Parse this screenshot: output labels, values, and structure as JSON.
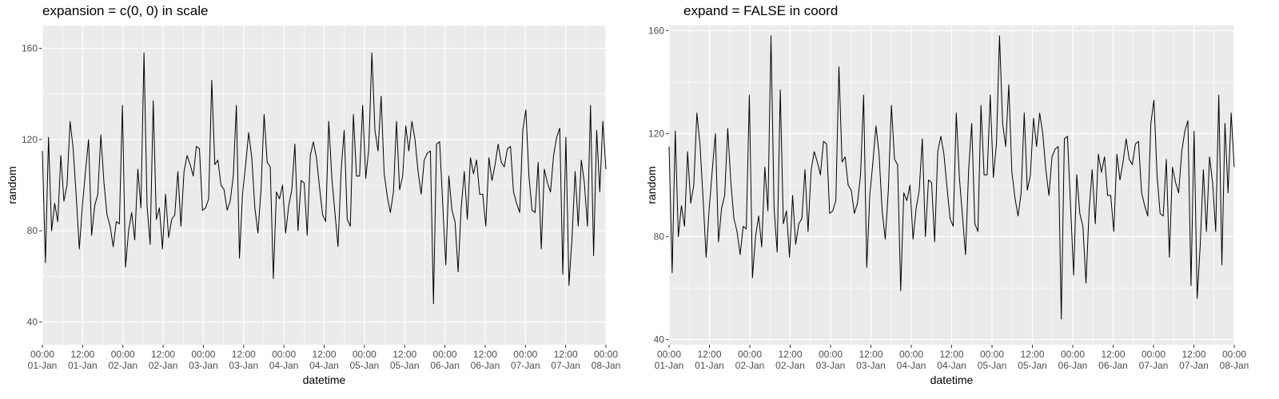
{
  "chart_data": [
    {
      "type": "line",
      "title": "expansion = c(0, 0) in scale",
      "xlabel": "datetime",
      "ylabel": "random",
      "ylim": [
        30,
        170
      ],
      "yticks": [
        40,
        80,
        120,
        160
      ],
      "xticks": [
        {
          "time": "00:00",
          "date": "01-Jan"
        },
        {
          "time": "12:00",
          "date": "01-Jan"
        },
        {
          "time": "00:00",
          "date": "02-Jan"
        },
        {
          "time": "12:00",
          "date": "02-Jan"
        },
        {
          "time": "00:00",
          "date": "03-Jan"
        },
        {
          "time": "12:00",
          "date": "03-Jan"
        },
        {
          "time": "00:00",
          "date": "04-Jan"
        },
        {
          "time": "12:00",
          "date": "04-Jan"
        },
        {
          "time": "00:00",
          "date": "05-Jan"
        },
        {
          "time": "12:00",
          "date": "05-Jan"
        },
        {
          "time": "00:00",
          "date": "06-Jan"
        },
        {
          "time": "12:00",
          "date": "06-Jan"
        },
        {
          "time": "00:00",
          "date": "07-Jan"
        },
        {
          "time": "12:00",
          "date": "07-Jan"
        },
        {
          "time": "00:00",
          "date": "08-Jan"
        }
      ],
      "series_ref": "random",
      "grid": true,
      "background": "#EBEBEB",
      "grid_color": "#FFFFFF",
      "line_color": "#000000"
    },
    {
      "type": "line",
      "title": "expand = FALSE in coord",
      "xlabel": "datetime",
      "ylabel": "random",
      "ylim": [
        38,
        162
      ],
      "yticks": [
        40,
        80,
        120,
        160
      ],
      "xticks": [
        {
          "time": "00:00",
          "date": "01-Jan"
        },
        {
          "time": "12:00",
          "date": "01-Jan"
        },
        {
          "time": "00:00",
          "date": "02-Jan"
        },
        {
          "time": "12:00",
          "date": "02-Jan"
        },
        {
          "time": "00:00",
          "date": "03-Jan"
        },
        {
          "time": "12:00",
          "date": "03-Jan"
        },
        {
          "time": "00:00",
          "date": "04-Jan"
        },
        {
          "time": "12:00",
          "date": "04-Jan"
        },
        {
          "time": "00:00",
          "date": "05-Jan"
        },
        {
          "time": "12:00",
          "date": "05-Jan"
        },
        {
          "time": "00:00",
          "date": "06-Jan"
        },
        {
          "time": "12:00",
          "date": "06-Jan"
        },
        {
          "time": "00:00",
          "date": "07-Jan"
        },
        {
          "time": "12:00",
          "date": "07-Jan"
        },
        {
          "time": "00:00",
          "date": "08-Jan"
        }
      ],
      "series_ref": "random",
      "grid": true,
      "background": "#EBEBEB",
      "grid_color": "#FFFFFF",
      "line_color": "#000000"
    }
  ],
  "series": {
    "random": {
      "x_start": "01-Jan 00:00",
      "x_end": "08-Jan 00:00",
      "values": [
        115,
        66,
        121,
        80,
        92,
        84,
        113,
        93,
        100,
        128,
        116,
        95,
        72,
        91,
        106,
        120,
        78,
        91,
        96,
        122,
        101,
        87,
        82,
        73,
        84,
        83,
        135,
        64,
        80,
        88,
        76,
        107,
        90,
        158,
        91,
        74,
        137,
        85,
        90,
        72,
        96,
        77,
        85,
        87,
        106,
        82,
        106,
        113,
        109,
        104,
        117,
        116,
        89,
        90,
        94,
        146,
        109,
        111,
        100,
        98,
        89,
        93,
        104,
        135,
        68,
        96,
        109,
        123,
        112,
        90,
        79,
        98,
        131,
        110,
        108,
        59,
        97,
        94,
        100,
        79,
        91,
        98,
        118,
        80,
        102,
        101,
        78,
        113,
        119,
        112,
        99,
        87,
        84,
        128,
        103,
        88,
        73,
        106,
        124,
        85,
        82,
        131,
        104,
        104,
        135,
        103,
        116,
        158,
        124,
        115,
        139,
        105,
        95,
        88,
        97,
        128,
        98,
        104,
        126,
        115,
        128,
        120,
        106,
        96,
        111,
        114,
        115,
        48,
        118,
        119,
        92,
        65,
        104,
        89,
        84,
        62,
        90,
        106,
        85,
        112,
        105,
        111,
        96,
        96,
        82,
        112,
        102,
        109,
        118,
        110,
        108,
        116,
        117,
        97,
        92,
        88,
        124,
        133,
        104,
        89,
        88,
        110,
        72,
        107,
        101,
        97,
        113,
        121,
        125,
        61,
        121,
        56,
        77,
        106,
        82,
        111,
        101,
        82,
        135,
        69,
        124,
        97,
        128,
        107
      ]
    }
  }
}
